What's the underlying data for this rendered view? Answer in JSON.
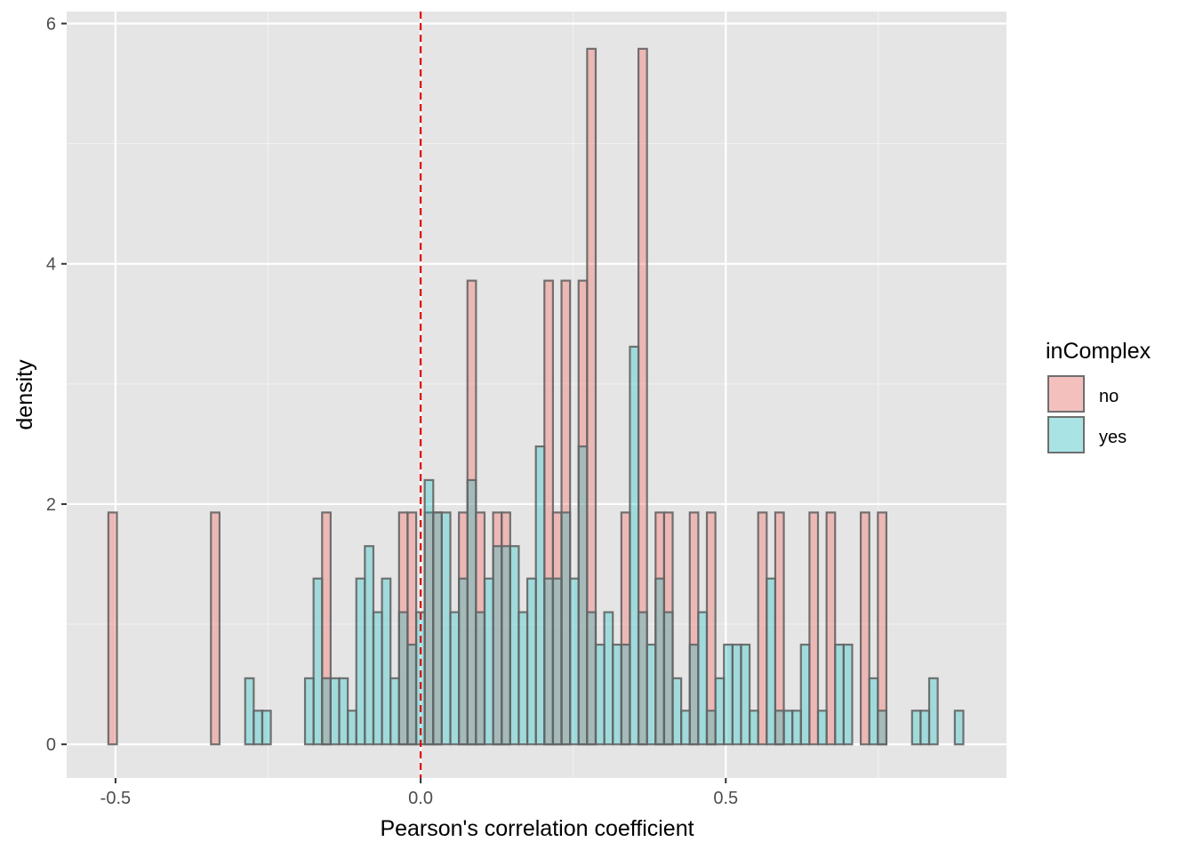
{
  "chart_data": {
    "type": "histogram",
    "xlabel": "Pearson's correlation coefficient",
    "ylabel": "density",
    "xlim": [
      -0.58,
      0.96
    ],
    "ylim": [
      -0.28,
      6.1
    ],
    "x_ticks": [
      "-0.5",
      "0.0",
      "0.5"
    ],
    "x_tick_values": [
      -0.5,
      0.0,
      0.5
    ],
    "y_ticks": [
      "0",
      "2",
      "4",
      "6"
    ],
    "y_tick_values": [
      0,
      2,
      4,
      6
    ],
    "grid": true,
    "bin_start": -0.5117,
    "bin_width": 0.01401,
    "reference_line": {
      "x": 0.0,
      "style": "dashed",
      "color": "#E00000"
    },
    "legend": {
      "title": "inComplex",
      "position": "right"
    },
    "series": [
      {
        "name": "no",
        "color": "#F8766D",
        "values": [
          1.93,
          0,
          0,
          0,
          0,
          0,
          0,
          0,
          0,
          0,
          0,
          0,
          1.93,
          0,
          0,
          0,
          0,
          0,
          0,
          0,
          0,
          0,
          0,
          0,
          0,
          1.93,
          0,
          0,
          0,
          0,
          0,
          0,
          0,
          0,
          1.93,
          1.93,
          0,
          1.93,
          1.93,
          0,
          0,
          1.93,
          3.86,
          1.93,
          0,
          1.93,
          1.93,
          0,
          0,
          0,
          0,
          3.86,
          1.93,
          3.86,
          0,
          3.86,
          5.79,
          0,
          0,
          0,
          1.93,
          0,
          5.79,
          0,
          1.93,
          1.93,
          0,
          0,
          1.93,
          0,
          1.93,
          0,
          0,
          0,
          0,
          0,
          1.93,
          0,
          1.93,
          0,
          0,
          0,
          1.93,
          0,
          1.93,
          0,
          0,
          0,
          1.93,
          0,
          1.93,
          0,
          0,
          0,
          0,
          0,
          0,
          0,
          0,
          0
        ]
      },
      {
        "name": "yes",
        "color": "#00BFC4",
        "values": [
          0,
          0,
          0,
          0,
          0,
          0,
          0,
          0,
          0,
          0,
          0,
          0,
          0,
          0,
          0,
          0,
          0.55,
          0.28,
          0.28,
          0,
          0,
          0,
          0,
          0.55,
          1.38,
          0.55,
          0.55,
          0.55,
          0.28,
          1.38,
          1.65,
          1.1,
          1.38,
          0.55,
          1.1,
          0.83,
          1.1,
          2.2,
          1.93,
          1.93,
          1.1,
          1.38,
          2.2,
          1.1,
          1.38,
          1.65,
          1.65,
          1.65,
          1.1,
          1.38,
          2.48,
          1.38,
          1.38,
          1.93,
          1.38,
          2.48,
          1.1,
          0.83,
          1.1,
          0.83,
          0.83,
          3.31,
          1.1,
          0.83,
          1.38,
          1.1,
          0.55,
          0.28,
          0.83,
          1.1,
          0.28,
          0.55,
          0.83,
          0.83,
          0.83,
          0.28,
          0,
          1.38,
          0.28,
          0.28,
          0.28,
          0.83,
          0,
          0.28,
          0,
          0.83,
          0.83,
          0,
          0,
          0.55,
          0.28,
          0,
          0,
          0,
          0.28,
          0.28,
          0.55,
          0,
          0,
          0.28
        ]
      }
    ]
  }
}
